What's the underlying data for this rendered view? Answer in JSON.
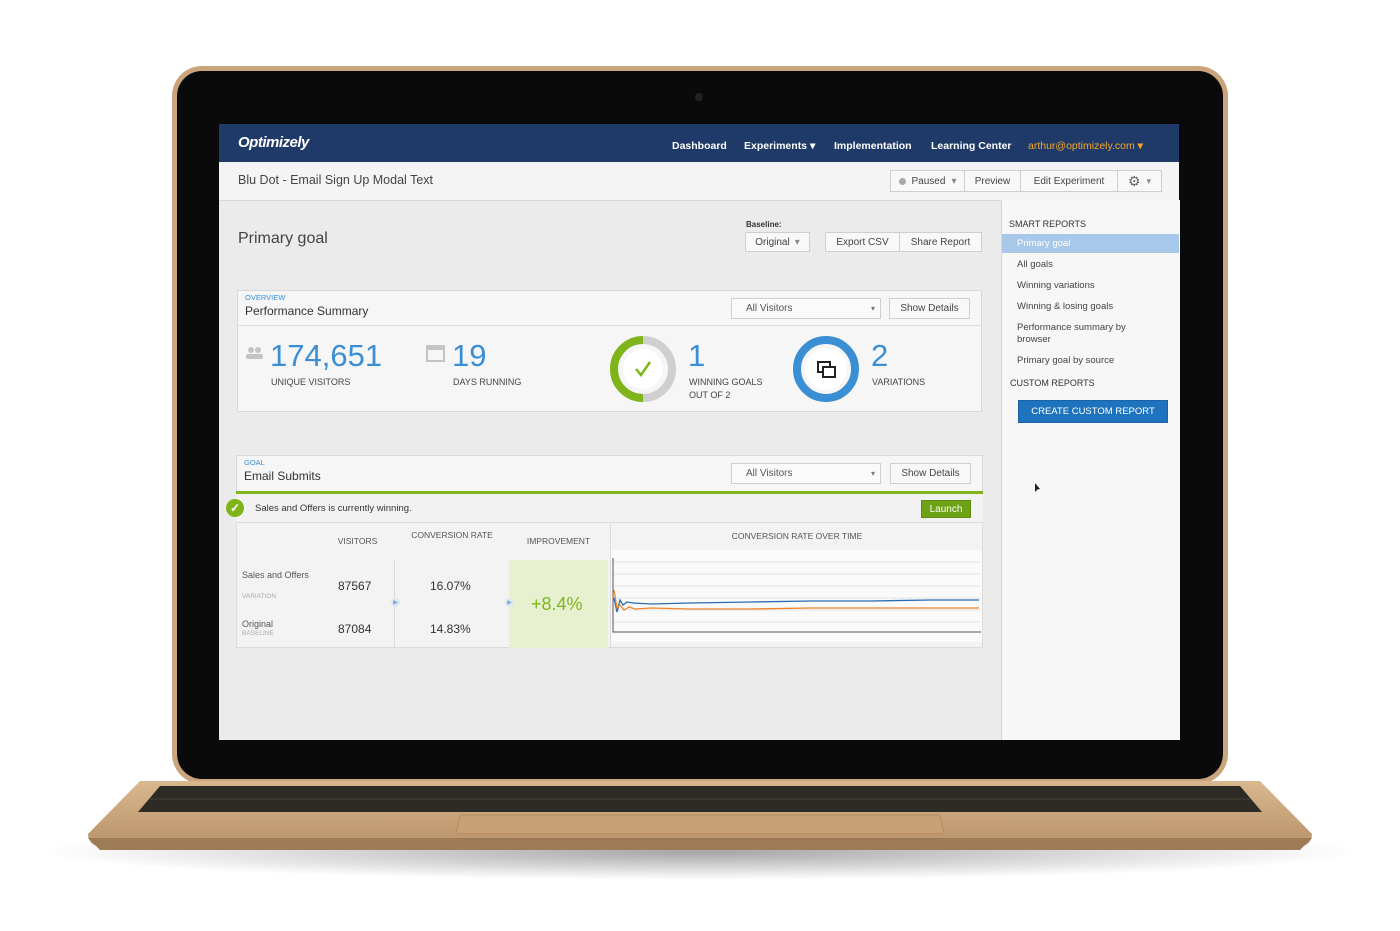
{
  "nav": {
    "brand": "Optimizely",
    "links": [
      "Dashboard",
      "Experiments",
      "Implementation",
      "Learning Center"
    ],
    "user": "arthur@optimizely.com"
  },
  "toolbar": {
    "title": "Blu Dot - Email Sign Up Modal Text",
    "status": "Paused",
    "buttons": [
      "Preview",
      "Edit Experiment"
    ]
  },
  "main": {
    "heading": "Primary goal",
    "baseline_label": "Baseline:",
    "baseline": "Original",
    "buttons": [
      "Export CSV",
      "Share Report"
    ]
  },
  "overview": {
    "kicker": "OVERVIEW",
    "title": "Performance Summary",
    "filter": "All Visitors",
    "details": "Show Details",
    "stats": [
      {
        "value": "174,651",
        "label": "UNIQUE VISITORS"
      },
      {
        "value": "19",
        "label": "DAYS RUNNING"
      },
      {
        "value": "1",
        "label": "WINNING GOALS",
        "sublabel": "OUT OF 2"
      },
      {
        "value": "2",
        "label": "VARIATIONS"
      }
    ]
  },
  "goal": {
    "kicker": "GOAL",
    "title": "Email Submits",
    "filter": "All Visitors",
    "details": "Show Details",
    "banner": "Sales and Offers is currently winning.",
    "launch": "Launch",
    "headers": [
      "VISITORS",
      "CONVERSION RATE",
      "IMPROVEMENT",
      "CONVERSION RATE OVER TIME"
    ],
    "rows": [
      {
        "name": "Sales and Offers",
        "tag": "VARIATION",
        "visitors": "87567",
        "rate": "16.07%"
      },
      {
        "name": "Original",
        "tag": "BASELINE",
        "visitors": "87084",
        "rate": "14.83%"
      }
    ],
    "improvement": "+8.4%"
  },
  "sidebar": {
    "smart_title": "SMART REPORTS",
    "smart_items": [
      "Primary goal",
      "All goals",
      "Winning variations",
      "Winning & losing goals",
      "Performance summary by browser",
      "Primary goal by source"
    ],
    "custom_title": "CUSTOM REPORTS",
    "create": "CREATE CUSTOM REPORT"
  }
}
